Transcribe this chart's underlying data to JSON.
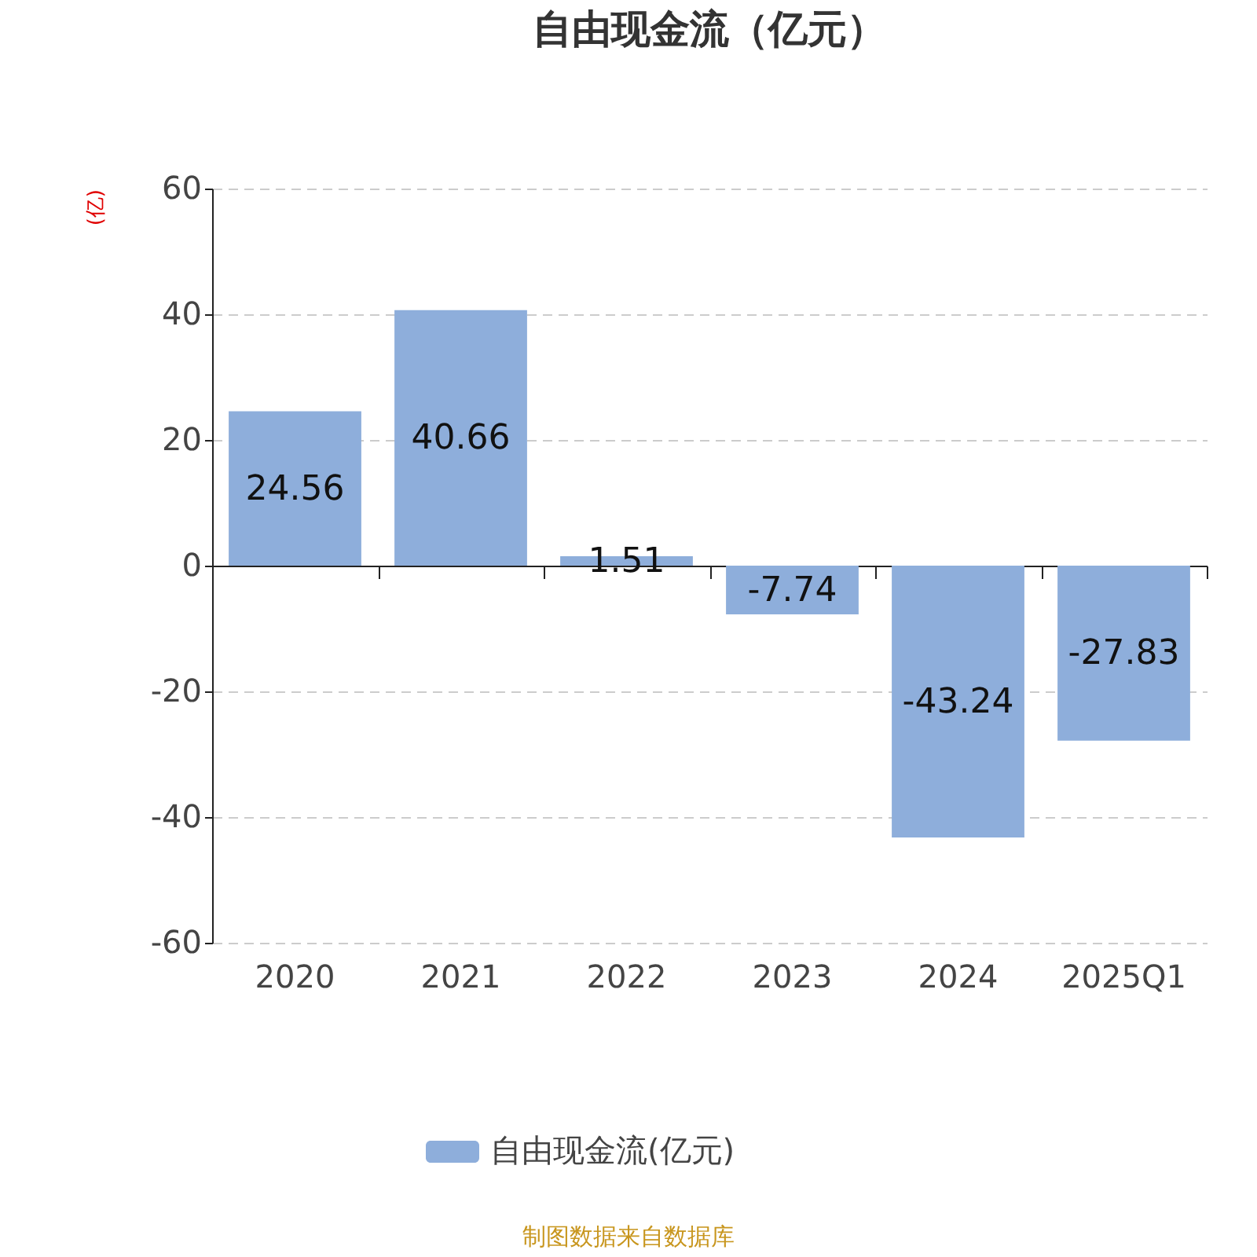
{
  "chart_data": {
    "type": "bar",
    "title": "自由现金流（亿元）",
    "ylabel": "(亿)",
    "categories": [
      "2020",
      "2021",
      "2022",
      "2023",
      "2024",
      "2025Q1"
    ],
    "series": [
      {
        "name": "自由现金流(亿元)",
        "color": "#8eaedb",
        "values": [
          24.56,
          40.66,
          1.51,
          -7.74,
          -43.24,
          -27.83
        ]
      }
    ],
    "ylim": [
      -60,
      60
    ],
    "yticks": [
      -60,
      -40,
      -20,
      0,
      20,
      40,
      60
    ],
    "grid": "y",
    "legend": "bottom",
    "data_labels": true,
    "annotations": [
      "制图数据来自数据库"
    ]
  }
}
